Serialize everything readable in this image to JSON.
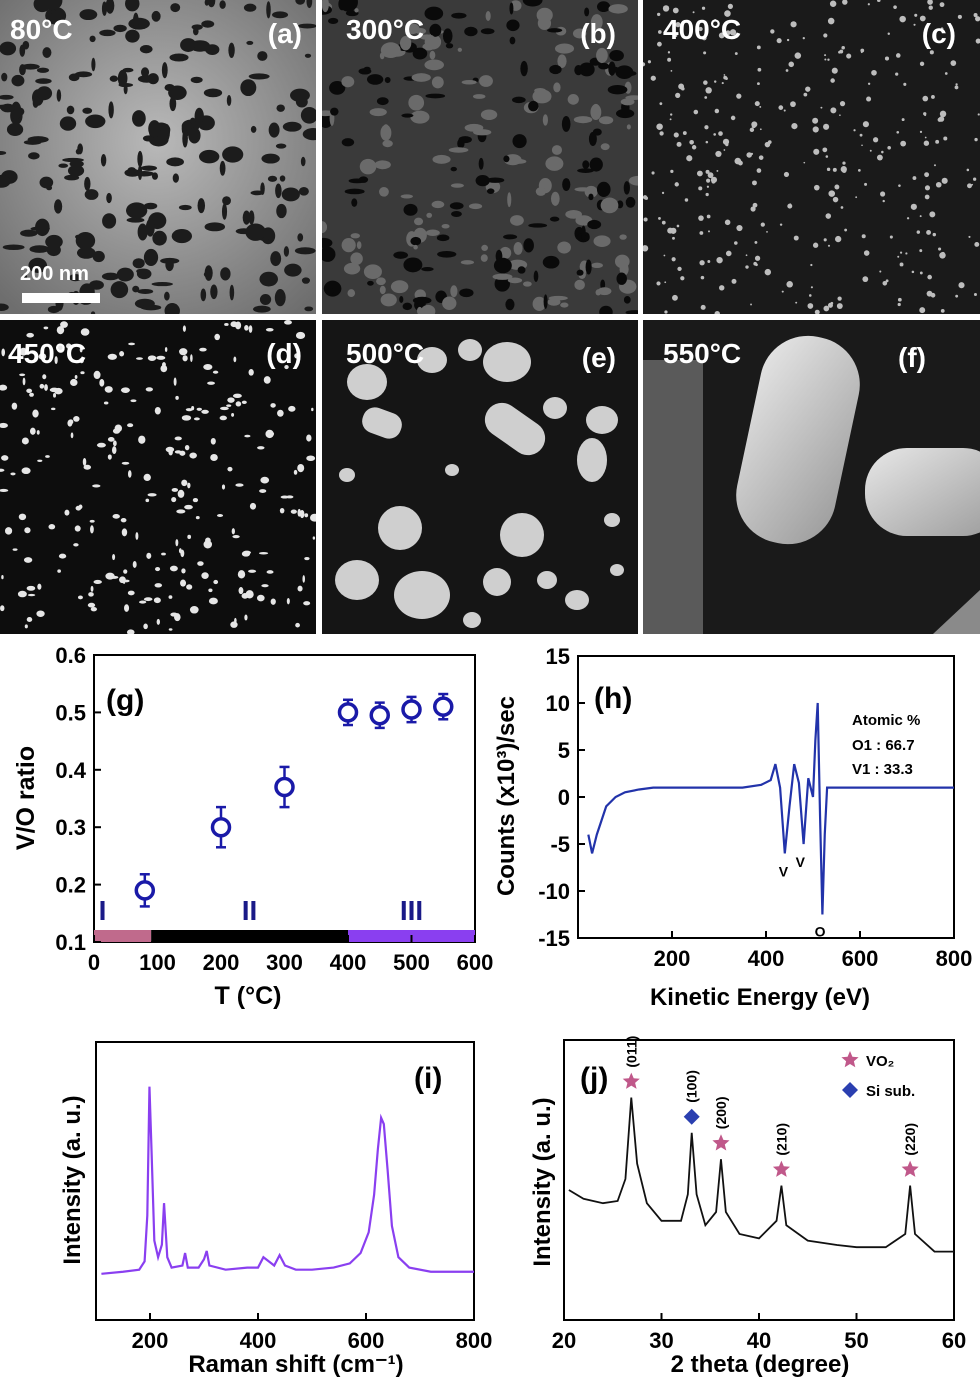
{
  "sem_panels": [
    {
      "id": "a",
      "temperature": "80°C",
      "letter": "(a)",
      "scale_bar": "200 nm"
    },
    {
      "id": "b",
      "temperature": "300°C",
      "letter": "(b)"
    },
    {
      "id": "c",
      "temperature": "400°C",
      "letter": "(c)"
    },
    {
      "id": "d",
      "temperature": "450°C",
      "letter": "(d)"
    },
    {
      "id": "e",
      "temperature": "500°C",
      "letter": "(e)"
    },
    {
      "id": "f",
      "temperature": "550°C",
      "letter": "(f)"
    }
  ],
  "chart_data": [
    {
      "id": "g",
      "letter": "(g)",
      "type": "scatter",
      "xlabel": "T (°C)",
      "ylabel": "V/O ratio",
      "xlim": [
        0,
        600
      ],
      "ylim": [
        0.1,
        0.6
      ],
      "xticks": [
        0,
        100,
        200,
        300,
        400,
        500,
        600
      ],
      "yticks": [
        0.1,
        0.2,
        0.3,
        0.4,
        0.5,
        0.6
      ],
      "x": [
        80,
        200,
        300,
        400,
        450,
        500,
        550
      ],
      "y": [
        0.19,
        0.3,
        0.37,
        0.5,
        0.495,
        0.505,
        0.51
      ],
      "yerr": [
        0.028,
        0.035,
        0.035,
        0.022,
        0.022,
        0.022,
        0.022
      ],
      "marker_color": "#1a1aa8",
      "regions": [
        {
          "label": "I",
          "from": 0,
          "to": 90,
          "color": "#c06a8c"
        },
        {
          "label": "II",
          "from": 90,
          "to": 400,
          "color": "#000000"
        },
        {
          "label": "III",
          "from": 400,
          "to": 600,
          "color": "#8a3ff0"
        }
      ]
    },
    {
      "id": "h",
      "letter": "(h)",
      "type": "line",
      "xlabel": "Kinetic Energy (eV)",
      "ylabel": "Counts (x10³)/sec",
      "xlim": [
        0,
        800
      ],
      "ylim": [
        -15,
        15
      ],
      "xticks": [
        200,
        400,
        600,
        800
      ],
      "yticks": [
        -15,
        -10,
        -5,
        0,
        5,
        10,
        15
      ],
      "line_color": "#2233aa",
      "annotation_title": "Atomic %",
      "annotation_lines": [
        "O1 : 66.7",
        "V1 : 33.3"
      ],
      "peak_labels": [
        {
          "text": "V",
          "x": 437,
          "y": -7.8
        },
        {
          "text": "V",
          "x": 473,
          "y": -6.8
        },
        {
          "text": "O",
          "x": 515,
          "y": -14.2
        }
      ],
      "x": [
        22,
        30,
        40,
        50,
        60,
        80,
        100,
        130,
        160,
        200,
        250,
        300,
        350,
        390,
        410,
        420,
        430,
        440,
        450,
        460,
        470,
        480,
        490,
        500,
        505,
        510,
        515,
        520,
        525,
        530,
        540,
        560,
        600,
        650,
        700,
        750,
        800
      ],
      "y": [
        -4,
        -6,
        -4,
        -2.5,
        -1,
        0,
        0.5,
        0.8,
        1,
        1,
        1,
        1,
        1,
        1.3,
        1.8,
        3.5,
        1,
        -6,
        -1,
        3.5,
        1.5,
        -5,
        2,
        0,
        6,
        10,
        -2,
        -12.5,
        -4,
        1,
        1,
        1,
        1,
        1,
        1,
        1,
        1
      ]
    },
    {
      "id": "i",
      "letter": "(i)",
      "type": "line",
      "xlabel": "Raman shift (cm⁻¹)",
      "ylabel": "Intensity (a. u.)",
      "xlim": [
        100,
        800
      ],
      "xticks": [
        200,
        400,
        600,
        800
      ],
      "line_color": "#8a3ff0",
      "x": [
        110,
        150,
        180,
        190,
        195,
        199,
        203,
        208,
        215,
        222,
        226,
        232,
        240,
        260,
        265,
        270,
        290,
        300,
        305,
        310,
        340,
        380,
        400,
        410,
        420,
        430,
        440,
        450,
        470,
        500,
        540,
        570,
        590,
        605,
        615,
        622,
        628,
        633,
        640,
        648,
        660,
        680,
        720,
        760,
        800
      ],
      "y": [
        0.02,
        0.03,
        0.04,
        0.08,
        0.3,
        0.92,
        0.6,
        0.18,
        0.1,
        0.16,
        0.36,
        0.1,
        0.05,
        0.06,
        0.12,
        0.05,
        0.05,
        0.09,
        0.13,
        0.06,
        0.04,
        0.05,
        0.05,
        0.1,
        0.08,
        0.06,
        0.11,
        0.06,
        0.04,
        0.04,
        0.05,
        0.07,
        0.12,
        0.22,
        0.4,
        0.62,
        0.77,
        0.74,
        0.52,
        0.25,
        0.1,
        0.05,
        0.03,
        0.03,
        0.03
      ]
    },
    {
      "id": "j",
      "letter": "(j)",
      "type": "line",
      "xlabel": "2 theta (degree)",
      "ylabel": "Intensity (a. u.)",
      "xlim": [
        20,
        60
      ],
      "xticks": [
        20,
        30,
        40,
        50,
        60
      ],
      "line_color": "#111111",
      "legend": [
        {
          "name": "VO₂",
          "marker": "star",
          "color": "#c0588a"
        },
        {
          "name": "Si sub.",
          "marker": "diamond",
          "color": "#2a3fb0"
        }
      ],
      "peaks": [
        {
          "x": 26.9,
          "label": "(011)",
          "marker": "star"
        },
        {
          "x": 33.1,
          "label": "(100)",
          "marker": "diamond"
        },
        {
          "x": 36.1,
          "label": "(200)",
          "marker": "star"
        },
        {
          "x": 42.3,
          "label": "(210)",
          "marker": "star"
        },
        {
          "x": 55.5,
          "label": "(220)",
          "marker": "star"
        }
      ],
      "x": [
        20.5,
        22,
        24,
        25.5,
        26.3,
        26.9,
        27.5,
        28.5,
        30,
        32,
        32.7,
        33.1,
        33.6,
        34.5,
        35.6,
        36.1,
        36.6,
        38,
        40,
        41.8,
        42.3,
        42.8,
        45,
        48,
        50,
        53,
        55,
        55.5,
        56,
        58,
        60
      ],
      "y": [
        0.5,
        0.46,
        0.44,
        0.45,
        0.55,
        0.92,
        0.62,
        0.44,
        0.36,
        0.36,
        0.48,
        0.76,
        0.48,
        0.34,
        0.4,
        0.64,
        0.4,
        0.3,
        0.28,
        0.36,
        0.52,
        0.34,
        0.27,
        0.25,
        0.24,
        0.24,
        0.3,
        0.52,
        0.3,
        0.22,
        0.22
      ]
    }
  ]
}
